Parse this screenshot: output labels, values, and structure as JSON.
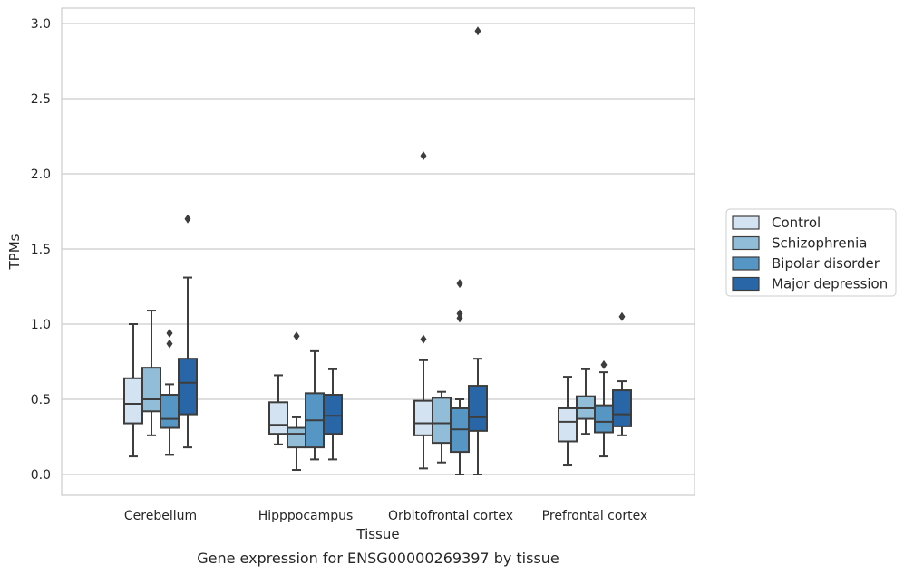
{
  "chart_data": {
    "type": "box",
    "title": "",
    "caption": "Gene expression for ENSG00000269397 by tissue",
    "xlabel": "Tissue",
    "ylabel": "TPMs",
    "ylim": [
      -0.14,
      3.1
    ],
    "yticks": [
      0.0,
      0.5,
      1.0,
      1.5,
      2.0,
      2.5,
      3.0
    ],
    "ytick_labels": [
      "0.0",
      "0.5",
      "1.0",
      "1.5",
      "2.0",
      "2.5",
      "3.0"
    ],
    "grid": "horizontal",
    "legend_position": "right",
    "categories": [
      "Cerebellum",
      "Hipppocampus",
      "Orbitofrontal cortex",
      "Prefrontal cortex"
    ],
    "series": [
      {
        "name": "Control",
        "color": "#d4e3f2",
        "boxes": [
          {
            "whisker_low": 0.12,
            "q1": 0.34,
            "median": 0.47,
            "q3": 0.64,
            "whisker_high": 1.0,
            "outliers": []
          },
          {
            "whisker_low": 0.2,
            "q1": 0.27,
            "median": 0.33,
            "q3": 0.48,
            "whisker_high": 0.66,
            "outliers": []
          },
          {
            "whisker_low": 0.04,
            "q1": 0.26,
            "median": 0.34,
            "q3": 0.49,
            "whisker_high": 0.76,
            "outliers": [
              0.9,
              2.12
            ]
          },
          {
            "whisker_low": 0.06,
            "q1": 0.22,
            "median": 0.35,
            "q3": 0.44,
            "whisker_high": 0.65,
            "outliers": []
          }
        ]
      },
      {
        "name": "Schizophrenia",
        "color": "#92bdd8",
        "boxes": [
          {
            "whisker_low": 0.26,
            "q1": 0.42,
            "median": 0.5,
            "q3": 0.71,
            "whisker_high": 1.09,
            "outliers": []
          },
          {
            "whisker_low": 0.03,
            "q1": 0.18,
            "median": 0.27,
            "q3": 0.31,
            "whisker_high": 0.38,
            "outliers": [
              0.92
            ]
          },
          {
            "whisker_low": 0.08,
            "q1": 0.21,
            "median": 0.34,
            "q3": 0.51,
            "whisker_high": 0.55,
            "outliers": []
          },
          {
            "whisker_low": 0.27,
            "q1": 0.37,
            "median": 0.44,
            "q3": 0.52,
            "whisker_high": 0.7,
            "outliers": []
          }
        ]
      },
      {
        "name": "Bipolar disorder",
        "color": "#5596c4",
        "boxes": [
          {
            "whisker_low": 0.13,
            "q1": 0.31,
            "median": 0.37,
            "q3": 0.53,
            "whisker_high": 0.6,
            "outliers": [
              0.87,
              0.94
            ]
          },
          {
            "whisker_low": 0.1,
            "q1": 0.18,
            "median": 0.36,
            "q3": 0.54,
            "whisker_high": 0.82,
            "outliers": []
          },
          {
            "whisker_low": 0.0,
            "q1": 0.15,
            "median": 0.3,
            "q3": 0.44,
            "whisker_high": 0.5,
            "outliers": [
              1.04,
              1.07,
              1.27
            ]
          },
          {
            "whisker_low": 0.12,
            "q1": 0.28,
            "median": 0.35,
            "q3": 0.46,
            "whisker_high": 0.68,
            "outliers": [
              0.73
            ]
          }
        ]
      },
      {
        "name": "Major depression",
        "color": "#2866a8",
        "boxes": [
          {
            "whisker_low": 0.18,
            "q1": 0.4,
            "median": 0.61,
            "q3": 0.77,
            "whisker_high": 1.31,
            "outliers": [
              1.7
            ]
          },
          {
            "whisker_low": 0.1,
            "q1": 0.27,
            "median": 0.39,
            "q3": 0.53,
            "whisker_high": 0.7,
            "outliers": []
          },
          {
            "whisker_low": 0.0,
            "q1": 0.29,
            "median": 0.38,
            "q3": 0.59,
            "whisker_high": 0.77,
            "outliers": [
              2.95
            ]
          },
          {
            "whisker_low": 0.26,
            "q1": 0.32,
            "median": 0.4,
            "q3": 0.56,
            "whisker_high": 0.62,
            "outliers": [
              1.05
            ]
          }
        ]
      }
    ]
  }
}
